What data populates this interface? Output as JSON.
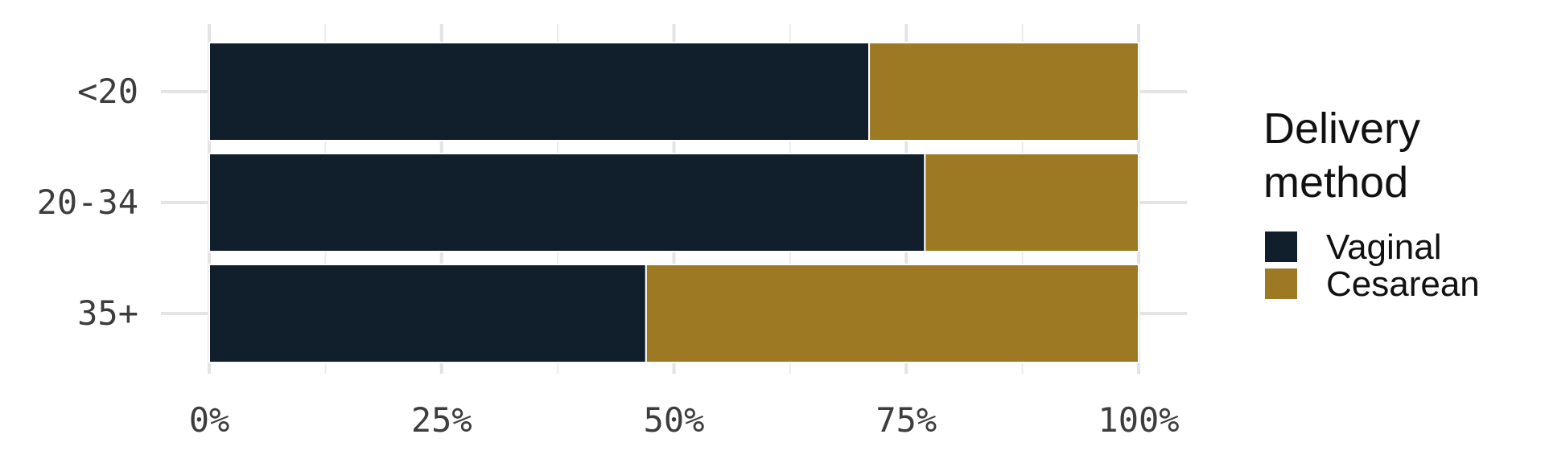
{
  "chart_data": {
    "type": "bar",
    "orientation": "horizontal",
    "stacked": "percent",
    "categories": [
      "<20",
      "20-34",
      "35+"
    ],
    "series": [
      {
        "name": "Vaginal",
        "values": [
          71,
          77,
          47
        ],
        "color": "#111e2b"
      },
      {
        "name": "Cesarean",
        "values": [
          29,
          23,
          53
        ],
        "color": "#9d7924"
      }
    ],
    "xlim": [
      0,
      100
    ],
    "x_ticks": [
      0,
      25,
      50,
      75,
      100
    ],
    "x_tick_labels": [
      "0%",
      "25%",
      "50%",
      "75%",
      "100%"
    ],
    "xlabel": "",
    "ylabel": "",
    "grid": true,
    "legend": {
      "title": "Delivery method",
      "title_lines": [
        "Delivery",
        "method"
      ],
      "position": "right"
    }
  }
}
